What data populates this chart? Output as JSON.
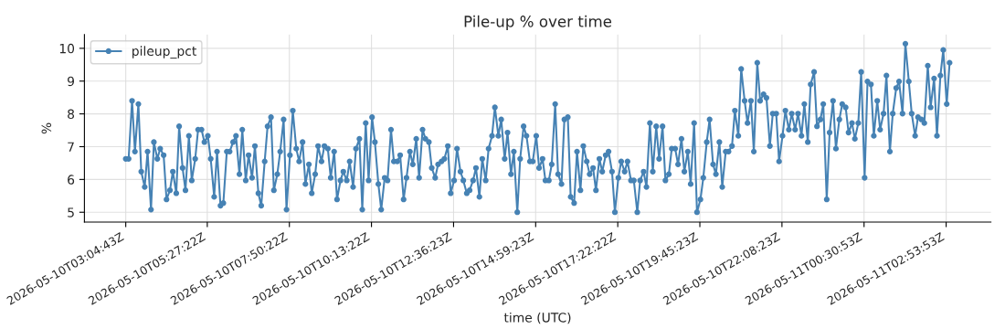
{
  "chart_data": {
    "type": "line",
    "title": "Pile-up % over time",
    "xlabel": "time (UTC)",
    "ylabel": "%",
    "x": [
      "2026-05-10T03:05",
      "2026-05-10T03:10",
      "2026-05-10T03:16",
      "2026-05-10T03:21",
      "2026-05-10T03:27",
      "2026-05-10T03:32",
      "2026-05-10T03:38",
      "2026-05-10T03:43",
      "2026-05-10T03:49",
      "2026-05-10T03:54",
      "2026-05-10T04:00",
      "2026-05-10T04:05",
      "2026-05-10T04:11",
      "2026-05-10T04:16",
      "2026-05-10T04:22",
      "2026-05-10T04:27",
      "2026-05-10T04:33",
      "2026-05-10T04:38",
      "2026-05-10T04:44",
      "2026-05-10T04:49",
      "2026-05-10T04:55",
      "2026-05-10T05:00",
      "2026-05-10T05:06",
      "2026-05-10T05:11",
      "2026-05-10T05:17",
      "2026-05-10T05:22",
      "2026-05-10T05:28",
      "2026-05-10T05:33",
      "2026-05-10T05:39",
      "2026-05-10T05:44",
      "2026-05-10T05:50",
      "2026-05-10T05:55",
      "2026-05-10T06:01",
      "2026-05-10T06:06",
      "2026-05-10T06:12",
      "2026-05-10T06:17",
      "2026-05-10T06:23",
      "2026-05-10T06:28",
      "2026-05-10T06:34",
      "2026-05-10T06:39",
      "2026-05-10T06:45",
      "2026-05-10T06:50",
      "2026-05-10T06:56",
      "2026-05-10T07:01",
      "2026-05-10T07:07",
      "2026-05-10T07:12",
      "2026-05-10T07:18",
      "2026-05-10T07:23",
      "2026-05-10T07:29",
      "2026-05-10T07:34",
      "2026-05-10T07:40",
      "2026-05-10T07:45",
      "2026-05-10T07:51",
      "2026-05-10T07:56",
      "2026-05-10T08:02",
      "2026-05-10T08:07",
      "2026-05-10T08:13",
      "2026-05-10T08:18",
      "2026-05-10T08:24",
      "2026-05-10T08:29",
      "2026-05-10T08:35",
      "2026-05-10T08:40",
      "2026-05-10T08:46",
      "2026-05-10T08:51",
      "2026-05-10T08:57",
      "2026-05-10T09:02",
      "2026-05-10T09:08",
      "2026-05-10T09:13",
      "2026-05-10T09:19",
      "2026-05-10T09:24",
      "2026-05-10T09:30",
      "2026-05-10T09:35",
      "2026-05-10T09:41",
      "2026-05-10T09:46",
      "2026-05-10T09:52",
      "2026-05-10T09:57",
      "2026-05-10T10:03",
      "2026-05-10T10:08",
      "2026-05-10T10:14",
      "2026-05-10T10:19",
      "2026-05-10T10:25",
      "2026-05-10T10:30",
      "2026-05-10T10:36",
      "2026-05-10T10:41",
      "2026-05-10T10:47",
      "2026-05-10T10:52",
      "2026-05-10T10:58",
      "2026-05-10T11:03",
      "2026-05-10T11:09",
      "2026-05-10T11:14",
      "2026-05-10T11:20",
      "2026-05-10T11:25",
      "2026-05-10T11:31",
      "2026-05-10T11:36",
      "2026-05-10T11:42",
      "2026-05-10T11:47",
      "2026-05-10T11:53",
      "2026-05-10T11:58",
      "2026-05-10T12:04",
      "2026-05-10T12:09",
      "2026-05-10T12:15",
      "2026-05-10T12:20",
      "2026-05-10T12:26",
      "2026-05-10T12:31",
      "2026-05-10T12:37",
      "2026-05-10T12:42",
      "2026-05-10T12:48",
      "2026-05-10T12:53",
      "2026-05-10T12:59",
      "2026-05-10T13:04",
      "2026-05-10T13:10",
      "2026-05-10T13:15",
      "2026-05-10T13:21",
      "2026-05-10T13:26",
      "2026-05-10T13:32",
      "2026-05-10T13:37",
      "2026-05-10T13:43",
      "2026-05-10T13:48",
      "2026-05-10T13:54",
      "2026-05-10T13:59",
      "2026-05-10T14:05",
      "2026-05-10T14:10",
      "2026-05-10T14:16",
      "2026-05-10T14:21",
      "2026-05-10T14:27",
      "2026-05-10T14:32",
      "2026-05-10T14:38",
      "2026-05-10T14:43",
      "2026-05-10T14:49",
      "2026-05-10T14:54",
      "2026-05-10T15:00",
      "2026-05-10T15:05",
      "2026-05-10T15:11",
      "2026-05-10T15:16",
      "2026-05-10T15:22",
      "2026-05-10T15:27",
      "2026-05-10T15:33",
      "2026-05-10T15:38",
      "2026-05-10T15:44",
      "2026-05-10T15:49",
      "2026-05-10T15:55",
      "2026-05-10T16:00",
      "2026-05-10T16:06",
      "2026-05-10T16:11",
      "2026-05-10T16:17",
      "2026-05-10T16:22",
      "2026-05-10T16:28",
      "2026-05-10T16:33",
      "2026-05-10T16:39",
      "2026-05-10T16:44",
      "2026-05-10T16:50",
      "2026-05-10T16:55",
      "2026-05-10T17:01",
      "2026-05-10T17:06",
      "2026-05-10T17:12",
      "2026-05-10T17:17",
      "2026-05-10T17:23",
      "2026-05-10T17:28",
      "2026-05-10T17:34",
      "2026-05-10T17:39",
      "2026-05-10T17:45",
      "2026-05-10T17:50",
      "2026-05-10T17:56",
      "2026-05-10T18:01",
      "2026-05-10T18:07",
      "2026-05-10T18:12",
      "2026-05-10T18:18",
      "2026-05-10T18:23",
      "2026-05-10T18:29",
      "2026-05-10T18:34",
      "2026-05-10T18:40",
      "2026-05-10T18:45",
      "2026-05-10T18:51",
      "2026-05-10T18:56",
      "2026-05-10T19:02",
      "2026-05-10T19:07",
      "2026-05-10T19:13",
      "2026-05-10T19:18",
      "2026-05-10T19:24",
      "2026-05-10T19:29",
      "2026-05-10T19:35",
      "2026-05-10T19:40",
      "2026-05-10T19:46",
      "2026-05-10T19:51",
      "2026-05-10T19:57",
      "2026-05-10T20:02",
      "2026-05-10T20:08",
      "2026-05-10T20:13",
      "2026-05-10T20:19",
      "2026-05-10T20:24",
      "2026-05-10T20:30",
      "2026-05-10T20:35",
      "2026-05-10T20:41",
      "2026-05-10T20:46",
      "2026-05-10T20:52",
      "2026-05-10T20:57",
      "2026-05-10T21:03",
      "2026-05-10T21:08",
      "2026-05-10T21:14",
      "2026-05-10T21:19",
      "2026-05-10T21:25",
      "2026-05-10T21:30",
      "2026-05-10T21:36",
      "2026-05-10T21:41",
      "2026-05-10T21:47",
      "2026-05-10T21:52",
      "2026-05-10T21:58",
      "2026-05-10T22:03",
      "2026-05-10T22:09",
      "2026-05-10T22:14",
      "2026-05-10T22:20",
      "2026-05-10T22:25",
      "2026-05-10T22:31",
      "2026-05-10T22:36",
      "2026-05-10T22:42",
      "2026-05-10T22:47",
      "2026-05-10T22:53",
      "2026-05-10T22:58",
      "2026-05-10T23:04",
      "2026-05-10T23:09",
      "2026-05-10T23:15",
      "2026-05-10T23:20",
      "2026-05-10T23:26",
      "2026-05-10T23:31",
      "2026-05-10T23:37",
      "2026-05-10T23:42",
      "2026-05-10T23:48",
      "2026-05-10T23:53",
      "2026-05-10T23:59",
      "2026-05-11T00:04",
      "2026-05-11T00:10",
      "2026-05-11T00:15",
      "2026-05-11T00:21",
      "2026-05-11T00:26",
      "2026-05-11T00:32",
      "2026-05-11T00:37",
      "2026-05-11T00:43",
      "2026-05-11T00:48",
      "2026-05-11T00:54",
      "2026-05-11T00:59",
      "2026-05-11T01:05",
      "2026-05-11T01:10",
      "2026-05-11T01:16",
      "2026-05-11T01:21",
      "2026-05-11T01:27",
      "2026-05-11T01:32",
      "2026-05-11T01:38",
      "2026-05-11T01:43",
      "2026-05-11T01:49",
      "2026-05-11T01:54",
      "2026-05-11T02:00",
      "2026-05-11T02:05",
      "2026-05-11T02:11",
      "2026-05-11T02:16",
      "2026-05-11T02:22",
      "2026-05-11T02:27",
      "2026-05-11T02:33",
      "2026-05-11T02:38",
      "2026-05-11T02:44",
      "2026-05-11T02:49",
      "2026-05-11T02:55",
      "2026-05-11T03:00"
    ],
    "series": [
      {
        "name": "pileup_pct",
        "color": "#4682b4",
        "values": [
          6.63,
          6.63,
          8.4,
          6.85,
          8.3,
          6.24,
          5.77,
          6.85,
          5.08,
          7.14,
          6.63,
          6.94,
          6.74,
          5.39,
          5.67,
          6.24,
          5.58,
          7.62,
          6.35,
          5.67,
          7.33,
          5.97,
          6.63,
          7.52,
          7.52,
          7.14,
          7.33,
          6.63,
          5.47,
          6.85,
          5.2,
          5.28,
          6.85,
          6.85,
          7.14,
          7.33,
          6.16,
          7.52,
          5.97,
          6.74,
          6.05,
          7.02,
          5.58,
          5.2,
          6.55,
          7.62,
          7.9,
          5.67,
          6.16,
          6.85,
          7.83,
          5.08,
          6.74,
          8.1,
          6.94,
          6.55,
          7.14,
          5.86,
          6.46,
          5.58,
          6.16,
          7.02,
          6.55,
          7.02,
          6.94,
          6.05,
          6.85,
          5.39,
          5.97,
          6.24,
          5.97,
          6.55,
          5.77,
          6.94,
          7.24,
          5.08,
          7.72,
          5.97,
          7.9,
          7.14,
          5.86,
          5.08,
          6.05,
          5.97,
          7.52,
          6.55,
          6.55,
          6.74,
          5.39,
          6.05,
          6.85,
          6.46,
          7.24,
          6.05,
          7.52,
          7.24,
          7.14,
          6.35,
          6.05,
          6.46,
          6.55,
          6.63,
          7.02,
          5.58,
          5.97,
          6.94,
          6.24,
          5.97,
          5.58,
          5.67,
          5.97,
          6.35,
          5.47,
          6.63,
          5.97,
          6.94,
          7.33,
          8.2,
          7.33,
          7.83,
          6.63,
          7.43,
          6.16,
          6.85,
          5.0,
          6.63,
          7.62,
          7.33,
          6.55,
          6.55,
          7.33,
          6.35,
          6.63,
          5.97,
          5.97,
          6.46,
          8.3,
          6.16,
          5.86,
          7.83,
          7.9,
          5.47,
          5.28,
          6.85,
          5.67,
          7.02,
          6.55,
          6.16,
          6.35,
          5.67,
          6.63,
          6.24,
          6.74,
          6.85,
          6.24,
          5.0,
          6.05,
          6.55,
          6.24,
          6.55,
          5.97,
          5.97,
          5.0,
          5.97,
          6.24,
          5.77,
          7.72,
          6.24,
          7.62,
          6.63,
          7.62,
          5.97,
          6.16,
          6.94,
          6.94,
          6.46,
          7.24,
          6.24,
          6.85,
          5.86,
          7.72,
          5.0,
          5.39,
          6.05,
          7.14,
          7.83,
          6.46,
          6.16,
          7.14,
          5.77,
          6.85,
          6.85,
          7.02,
          8.1,
          7.33,
          9.37,
          8.4,
          7.72,
          8.4,
          6.85,
          9.56,
          8.4,
          8.6,
          8.49,
          7.02,
          8.01,
          8.01,
          6.55,
          7.33,
          8.1,
          7.52,
          8.01,
          7.52,
          8.01,
          7.33,
          8.3,
          7.14,
          8.9,
          9.28,
          7.62,
          7.83,
          8.3,
          5.39,
          7.43,
          8.4,
          6.94,
          7.83,
          8.3,
          8.2,
          7.43,
          7.72,
          7.24,
          7.72,
          9.28,
          6.05,
          8.99,
          8.9,
          7.33,
          8.4,
          7.52,
          8.01,
          9.17,
          6.85,
          8.01,
          8.79,
          8.99,
          8.01,
          10.14,
          8.99,
          8.01,
          7.33,
          7.9,
          7.83,
          7.72,
          9.47,
          8.2,
          9.08,
          7.33,
          9.17,
          9.95,
          8.3,
          9.56
        ]
      }
    ],
    "xlim": [
      "2026-05-10T01:53",
      "2026-05-11T04:12"
    ],
    "xticks": [
      {
        "value": "2026-05-10T03:05",
        "label": "2026-05-10T03:04:43Z"
      },
      {
        "value": "2026-05-10T05:27",
        "label": "2026-05-10T05:27:22Z"
      },
      {
        "value": "2026-05-10T07:50",
        "label": "2026-05-10T07:50:22Z"
      },
      {
        "value": "2026-05-10T10:13",
        "label": "2026-05-10T10:13:22Z"
      },
      {
        "value": "2026-05-10T12:36",
        "label": "2026-05-10T12:36:23Z"
      },
      {
        "value": "2026-05-10T14:59",
        "label": "2026-05-10T14:59:23Z"
      },
      {
        "value": "2026-05-10T17:22",
        "label": "2026-05-10T17:22:22Z"
      },
      {
        "value": "2026-05-10T19:45",
        "label": "2026-05-10T19:45:23Z"
      },
      {
        "value": "2026-05-10T22:08",
        "label": "2026-05-10T22:08:23Z"
      },
      {
        "value": "2026-05-11T00:31",
        "label": "2026-05-11T00:30:53Z"
      },
      {
        "value": "2026-05-11T02:54",
        "label": "2026-05-11T02:53:53Z"
      }
    ],
    "ylim": [
      4.7,
      10.42
    ],
    "yticks": [
      5,
      6,
      7,
      8,
      9,
      10
    ],
    "grid": true,
    "legend": "top left",
    "marker": "circle",
    "line_style": "solid"
  }
}
